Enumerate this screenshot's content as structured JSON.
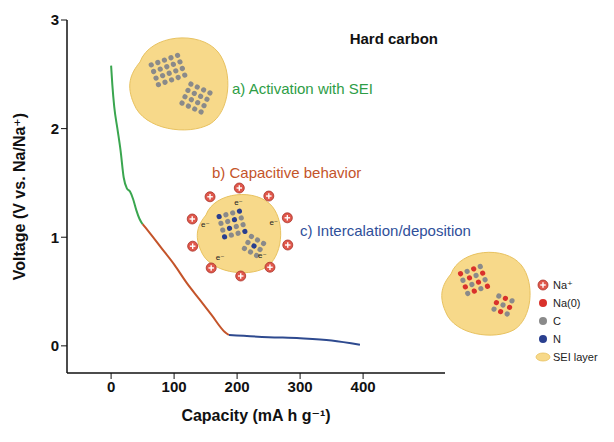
{
  "chart_data": {
    "type": "line",
    "title": "Hard carbon",
    "x_label": "Capacity (mA h g⁻¹)",
    "y_label": "Voltage (V vs. Na/Na⁺)",
    "xlim": [
      -70,
      530
    ],
    "xticks": [
      0,
      100,
      200,
      300,
      400
    ],
    "ylim": [
      -0.25,
      3
    ],
    "yticks": [
      0,
      1,
      2,
      3
    ],
    "series": [
      {
        "color": "#3aa64f",
        "x": [
          0,
          2,
          5,
          10,
          15,
          20,
          25,
          30,
          35,
          40,
          45,
          50
        ],
        "values": [
          2.58,
          2.4,
          2.2,
          2.0,
          1.8,
          1.55,
          1.45,
          1.42,
          1.35,
          1.25,
          1.17,
          1.12
        ]
      },
      {
        "color": "#c4542a",
        "x": [
          50,
          60,
          80,
          100,
          120,
          140,
          160,
          180,
          187
        ],
        "values": [
          1.12,
          1.05,
          0.9,
          0.75,
          0.58,
          0.43,
          0.28,
          0.13,
          0.1
        ]
      },
      {
        "color": "#2e4a8f",
        "x": [
          187,
          250,
          300,
          350,
          395
        ],
        "values": [
          0.1,
          0.08,
          0.07,
          0.05,
          0.01
        ]
      }
    ],
    "annotations": [
      {
        "text": "a) Activation with SEI",
        "color": "#2e9d46"
      },
      {
        "text": "b) Capacitive behavior",
        "color": "#c4542a"
      },
      {
        "text": "c) Intercalation/deposition",
        "color": "#2f4f9a"
      }
    ],
    "electron_label": "e⁻",
    "symbols": [
      {
        "label": "Na⁺",
        "color": "#e0584c"
      },
      {
        "label": "Na(0)",
        "color": "#d9312b"
      },
      {
        "label": "C",
        "color": "#8a8a8a"
      },
      {
        "label": "N",
        "color": "#2a3f8f"
      },
      {
        "label": "SEI layer",
        "color": "#f7d98a"
      }
    ]
  }
}
